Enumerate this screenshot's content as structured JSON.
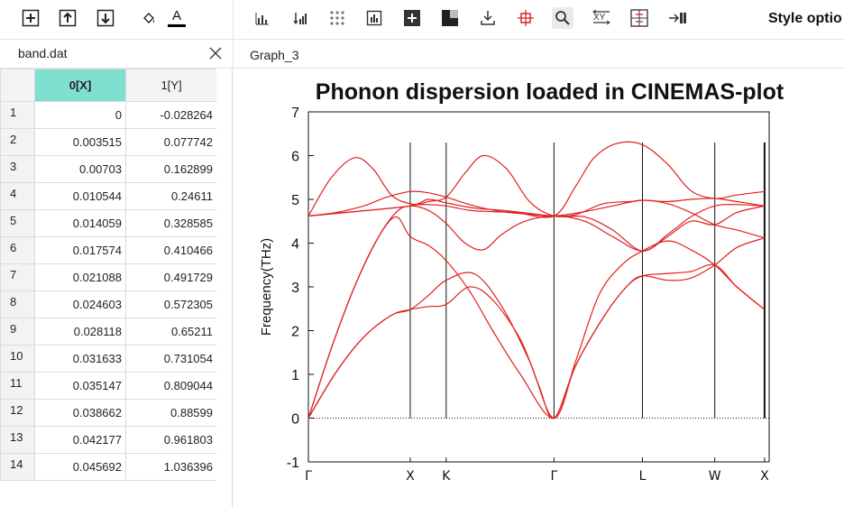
{
  "left_toolbar": {
    "icons": [
      "add-row-icon",
      "insert-above-icon",
      "insert-below-icon",
      "fill-color-icon",
      "font-color-icon"
    ],
    "font_color_letter": "A",
    "font_color_bar": "#000000"
  },
  "right_toolbar": {
    "icons": [
      "histogram-icon",
      "sort-bars-icon",
      "dot-grid-icon",
      "bar-chart-icon",
      "add-plot-icon",
      "layout-icon",
      "import-icon",
      "crosshair-icon",
      "zoom-icon",
      "swap-xy-icon",
      "grid-toggle-icon",
      "export-icon"
    ],
    "style_options_label": "Style optio"
  },
  "worksheet": {
    "title": "band.dat",
    "columns": [
      "0[X]",
      "1[Y]"
    ],
    "selected_column": "0[X]",
    "rows": [
      {
        "n": "1",
        "x": "0",
        "y": "-0.028264"
      },
      {
        "n": "2",
        "x": "0.003515",
        "y": "0.077742"
      },
      {
        "n": "3",
        "x": "0.00703",
        "y": "0.162899"
      },
      {
        "n": "4",
        "x": "0.010544",
        "y": "0.24611"
      },
      {
        "n": "5",
        "x": "0.014059",
        "y": "0.328585"
      },
      {
        "n": "6",
        "x": "0.017574",
        "y": "0.410466"
      },
      {
        "n": "7",
        "x": "0.021088",
        "y": "0.491729"
      },
      {
        "n": "8",
        "x": "0.024603",
        "y": "0.572305"
      },
      {
        "n": "9",
        "x": "0.028118",
        "y": "0.65211"
      },
      {
        "n": "10",
        "x": "0.031633",
        "y": "0.731054"
      },
      {
        "n": "11",
        "x": "0.035147",
        "y": "0.809044"
      },
      {
        "n": "12",
        "x": "0.038662",
        "y": "0.88599"
      },
      {
        "n": "13",
        "x": "0.042177",
        "y": "0.961803"
      },
      {
        "n": "14",
        "x": "0.045692",
        "y": "1.036396"
      }
    ],
    "selected_color": "#7fe0cf"
  },
  "graph_tab": {
    "title": "Graph_3"
  },
  "chart_data": {
    "type": "line",
    "title": "Phonon dispersion loaded in CINEMAS-plot",
    "ylabel": "Frequency(THz)",
    "xlabel": "",
    "ylim": [
      -1,
      7
    ],
    "yticks": [
      -1,
      0,
      1,
      2,
      3,
      4,
      5,
      6,
      7
    ],
    "xlim": [
      0,
      1
    ],
    "high_symmetry_points": [
      {
        "label": "Γ",
        "x": 0.0
      },
      {
        "label": "X",
        "x": 0.221
      },
      {
        "label": "K",
        "x": 0.299
      },
      {
        "label": "Γ",
        "x": 0.533
      },
      {
        "label": "L",
        "x": 0.725
      },
      {
        "label": "W",
        "x": 0.882
      },
      {
        "label": "X",
        "x": 0.99
      }
    ],
    "zero_line": 0,
    "line_color": "#e02020",
    "series": [
      {
        "points": [
          [
            0.0,
            0.0
          ],
          [
            0.06,
            1.05
          ],
          [
            0.12,
            1.85
          ],
          [
            0.18,
            2.35
          ],
          [
            0.221,
            2.48
          ],
          [
            0.26,
            2.55
          ],
          [
            0.299,
            2.6
          ],
          [
            0.35,
            3.0
          ],
          [
            0.4,
            2.7
          ],
          [
            0.46,
            1.8
          ],
          [
            0.5,
            0.75
          ],
          [
            0.533,
            0.0
          ],
          [
            0.58,
            1.2
          ],
          [
            0.64,
            2.3
          ],
          [
            0.69,
            3.0
          ],
          [
            0.725,
            3.25
          ],
          [
            0.77,
            3.3
          ],
          [
            0.83,
            3.35
          ],
          [
            0.882,
            3.5
          ],
          [
            0.93,
            3.0
          ],
          [
            0.99,
            2.48
          ]
        ]
      },
      {
        "points": [
          [
            0.0,
            0.0
          ],
          [
            0.06,
            1.05
          ],
          [
            0.12,
            1.85
          ],
          [
            0.18,
            2.35
          ],
          [
            0.221,
            2.48
          ],
          [
            0.26,
            2.8
          ],
          [
            0.299,
            3.15
          ],
          [
            0.36,
            3.3
          ],
          [
            0.42,
            2.55
          ],
          [
            0.48,
            1.3
          ],
          [
            0.533,
            0.0
          ],
          [
            0.58,
            1.2
          ],
          [
            0.64,
            2.3
          ],
          [
            0.69,
            3.0
          ],
          [
            0.725,
            3.25
          ],
          [
            0.78,
            3.15
          ],
          [
            0.83,
            3.2
          ],
          [
            0.882,
            3.5
          ],
          [
            0.93,
            3.9
          ],
          [
            0.99,
            4.12
          ]
        ]
      },
      {
        "points": [
          [
            0.0,
            0.0
          ],
          [
            0.05,
            1.6
          ],
          [
            0.1,
            3.0
          ],
          [
            0.15,
            4.1
          ],
          [
            0.19,
            4.7
          ],
          [
            0.221,
            4.85
          ],
          [
            0.26,
            4.75
          ],
          [
            0.299,
            4.45
          ],
          [
            0.34,
            4.0
          ],
          [
            0.38,
            3.85
          ],
          [
            0.42,
            4.2
          ],
          [
            0.47,
            4.5
          ],
          [
            0.533,
            4.62
          ],
          [
            0.6,
            4.5
          ],
          [
            0.66,
            4.15
          ],
          [
            0.725,
            3.82
          ],
          [
            0.78,
            4.15
          ],
          [
            0.83,
            4.5
          ],
          [
            0.882,
            4.42
          ],
          [
            0.93,
            4.7
          ],
          [
            0.99,
            4.85
          ]
        ]
      },
      {
        "points": [
          [
            0.0,
            0.0
          ],
          [
            0.05,
            1.6
          ],
          [
            0.1,
            3.0
          ],
          [
            0.15,
            4.1
          ],
          [
            0.19,
            4.6
          ],
          [
            0.221,
            4.15
          ],
          [
            0.26,
            3.95
          ],
          [
            0.299,
            3.6
          ],
          [
            0.35,
            2.9
          ],
          [
            0.4,
            2.0
          ],
          [
            0.46,
            1.0
          ],
          [
            0.533,
            0.0
          ],
          [
            0.58,
            1.3
          ],
          [
            0.63,
            2.8
          ],
          [
            0.68,
            3.5
          ],
          [
            0.725,
            3.82
          ],
          [
            0.78,
            4.05
          ],
          [
            0.83,
            3.85
          ],
          [
            0.882,
            3.5
          ],
          [
            0.93,
            3.0
          ],
          [
            0.99,
            2.48
          ]
        ]
      },
      {
        "points": [
          [
            0.0,
            4.62
          ],
          [
            0.05,
            5.5
          ],
          [
            0.1,
            5.95
          ],
          [
            0.14,
            5.7
          ],
          [
            0.18,
            5.1
          ],
          [
            0.221,
            4.9
          ],
          [
            0.26,
            4.88
          ],
          [
            0.299,
            4.85
          ],
          [
            0.35,
            4.75
          ],
          [
            0.4,
            4.72
          ],
          [
            0.45,
            4.7
          ],
          [
            0.533,
            4.62
          ],
          [
            0.58,
            5.3
          ],
          [
            0.62,
            5.95
          ],
          [
            0.67,
            6.28
          ],
          [
            0.725,
            6.25
          ],
          [
            0.78,
            5.8
          ],
          [
            0.83,
            5.2
          ],
          [
            0.882,
            5.02
          ],
          [
            0.93,
            5.1
          ],
          [
            0.99,
            5.18
          ]
        ]
      },
      {
        "points": [
          [
            0.0,
            4.62
          ],
          [
            0.1,
            4.72
          ],
          [
            0.221,
            4.85
          ],
          [
            0.26,
            4.95
          ],
          [
            0.299,
            5.05
          ],
          [
            0.34,
            5.6
          ],
          [
            0.38,
            6.0
          ],
          [
            0.43,
            5.7
          ],
          [
            0.48,
            4.95
          ],
          [
            0.533,
            4.62
          ],
          [
            0.6,
            4.6
          ],
          [
            0.66,
            4.3
          ],
          [
            0.725,
            3.82
          ],
          [
            0.78,
            4.2
          ],
          [
            0.83,
            4.6
          ],
          [
            0.882,
            4.85
          ],
          [
            0.93,
            4.88
          ],
          [
            0.99,
            4.85
          ]
        ]
      },
      {
        "points": [
          [
            0.0,
            4.62
          ],
          [
            0.1,
            4.72
          ],
          [
            0.221,
            4.85
          ],
          [
            0.26,
            5.0
          ],
          [
            0.299,
            4.92
          ],
          [
            0.36,
            4.8
          ],
          [
            0.42,
            4.75
          ],
          [
            0.48,
            4.68
          ],
          [
            0.533,
            4.62
          ],
          [
            0.58,
            4.65
          ],
          [
            0.64,
            4.9
          ],
          [
            0.7,
            4.95
          ],
          [
            0.725,
            4.98
          ],
          [
            0.78,
            4.95
          ],
          [
            0.83,
            5.0
          ],
          [
            0.882,
            5.02
          ],
          [
            0.93,
            4.95
          ],
          [
            0.99,
            4.85
          ]
        ]
      },
      {
        "points": [
          [
            0.0,
            4.62
          ],
          [
            0.06,
            4.7
          ],
          [
            0.12,
            4.85
          ],
          [
            0.17,
            5.05
          ],
          [
            0.221,
            5.18
          ],
          [
            0.26,
            5.15
          ],
          [
            0.299,
            5.05
          ],
          [
            0.36,
            4.85
          ],
          [
            0.42,
            4.72
          ],
          [
            0.48,
            4.66
          ],
          [
            0.533,
            4.62
          ],
          [
            0.6,
            4.72
          ],
          [
            0.66,
            4.85
          ],
          [
            0.725,
            4.98
          ],
          [
            0.78,
            4.9
          ],
          [
            0.83,
            4.7
          ],
          [
            0.882,
            4.42
          ],
          [
            0.93,
            4.3
          ],
          [
            0.99,
            4.12
          ]
        ]
      }
    ]
  }
}
